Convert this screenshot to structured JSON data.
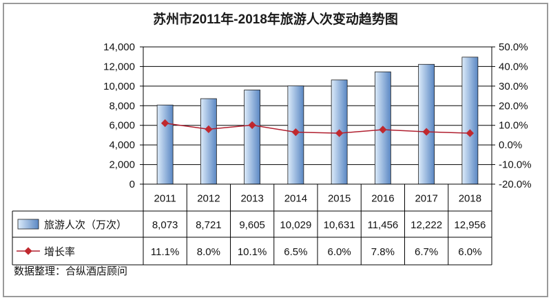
{
  "chart_data": {
    "type": "bar",
    "title": "苏州市2011年-2018年旅游人次变动趋势图",
    "categories": [
      "2011",
      "2012",
      "2013",
      "2014",
      "2015",
      "2016",
      "2017",
      "2018"
    ],
    "series": [
      {
        "name": "旅游人次（万次）",
        "type": "bar",
        "axis": "left",
        "values": [
          8073,
          8721,
          9605,
          10029,
          10631,
          11456,
          12222,
          12956
        ],
        "labels": [
          "8,073",
          "8,721",
          "9,605",
          "10,029",
          "10,631",
          "11,456",
          "12,222",
          "12,956"
        ]
      },
      {
        "name": "增长率",
        "type": "line",
        "axis": "right",
        "values": [
          11.1,
          8.0,
          10.1,
          6.5,
          6.0,
          7.8,
          6.7,
          6.0
        ],
        "labels": [
          "11.1%",
          "8.0%",
          "10.1%",
          "6.5%",
          "6.0%",
          "7.8%",
          "6.7%",
          "6.0%"
        ]
      }
    ],
    "y_left": {
      "range": [
        0,
        14000
      ],
      "ticks": [
        0,
        2000,
        4000,
        6000,
        8000,
        10000,
        12000,
        14000
      ],
      "tick_labels": [
        "0",
        "2,000",
        "4,000",
        "6,000",
        "8,000",
        "10,000",
        "12,000",
        "14,000"
      ]
    },
    "y_right": {
      "range": [
        -20,
        50
      ],
      "ticks": [
        -20,
        -10,
        0,
        10,
        20,
        30,
        40,
        50
      ],
      "tick_labels": [
        "-20.0%",
        "-10.0%",
        "0.0%",
        "10.0%",
        "20.0%",
        "30.0%",
        "40.0%",
        "50.0%"
      ]
    },
    "grid": true,
    "legend": "data-table",
    "colors": {
      "bar_light": "#dcebfa",
      "bar_dark": "#5a87c3",
      "line": "#b01e2e",
      "marker": "#c0282e",
      "grid": "#000000"
    }
  },
  "note": "数据整理：合纵酒店顾问"
}
